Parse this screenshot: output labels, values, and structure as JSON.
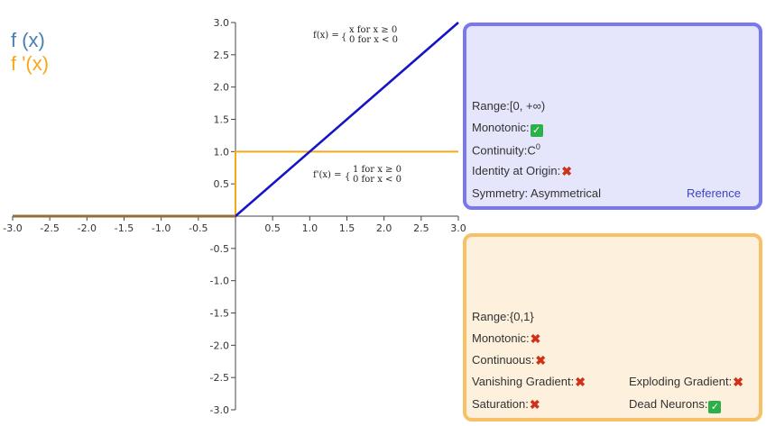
{
  "legend": {
    "f_label": "f (x)",
    "fprime_label": "f '(x)",
    "f_color": "#4a7fb5",
    "fprime_color": "#f4a91b"
  },
  "formulas": {
    "f_lhs": "f(x) =",
    "f_case1": "x   for x ≥ 0",
    "f_case2": "0   for x < 0",
    "fp_lhs": "f'(x) =",
    "fp_case1": "1   for x ≥ 0",
    "fp_case2": "0   for x < 0"
  },
  "chart_data": {
    "type": "line",
    "xlim": [
      -3,
      3
    ],
    "ylim": [
      -3,
      3
    ],
    "x_ticks": [
      "-3.0",
      "-2.5",
      "-2.0",
      "-1.5",
      "-1.0",
      "-0.5",
      "0.5",
      "1.0",
      "1.5",
      "2.0",
      "2.5",
      "3.0"
    ],
    "y_ticks": [
      "3.0",
      "2.5",
      "2.0",
      "1.5",
      "1.0",
      "0.5",
      "-0.5",
      "-1.0",
      "-1.5",
      "-2.0",
      "-2.5",
      "-3.0"
    ],
    "series": [
      {
        "name": "f (x)",
        "color": "#1515c8",
        "x": [
          -3,
          0,
          3
        ],
        "y": [
          0,
          0,
          3
        ]
      },
      {
        "name": "f '(x)",
        "color": "#f4a91b",
        "x": [
          -3,
          0,
          0,
          3
        ],
        "y": [
          0,
          0,
          1,
          1
        ]
      }
    ]
  },
  "function_panel": {
    "range_label": "Range:",
    "range_value": "[0, +∞)",
    "monotonic_label": "Monotonic:",
    "continuity_label": "Continuity:",
    "continuity_value": "C",
    "continuity_sup": "0",
    "identity_label": "Identity at Origin:",
    "symmetry_label": "Symmetry:",
    "symmetry_value": "Asymmetrical",
    "reference_label": "Reference"
  },
  "derivative_panel": {
    "range_label": "Range:",
    "range_value": "{0,1}",
    "monotonic_label": "Monotonic:",
    "continuous_label": "Continuous:",
    "vanishing_label": "Vanishing Gradient:",
    "exploding_label": "Exploding Gradient:",
    "saturation_label": "Saturation:",
    "dead_label": "Dead Neurons:"
  },
  "icons": {
    "check": "✓",
    "cross": "✖"
  }
}
